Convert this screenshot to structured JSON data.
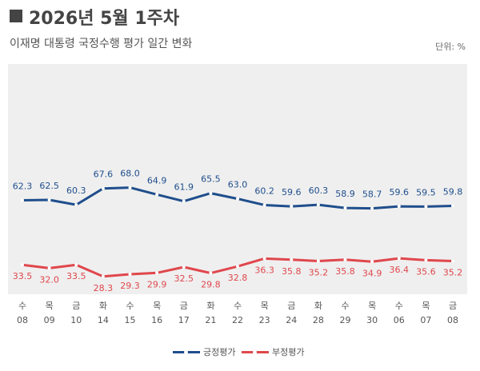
{
  "header": {
    "title": "2026년 5월 1주차",
    "subtitle": "이재명 대통령 국정수행 평가 일간 변화",
    "unit": "단위: %"
  },
  "colors": {
    "approve": "#1f4e8c",
    "disapprove": "#e0474c",
    "plot_bg": "#efefef"
  },
  "chart_data": {
    "type": "line",
    "title": "",
    "xlabel": "",
    "ylabel": "",
    "ylim": [
      20,
      75
    ],
    "grid": false,
    "legend_position": "bottom",
    "x": [
      {
        "day": "수",
        "date": "08"
      },
      {
        "day": "목",
        "date": "09"
      },
      {
        "day": "금",
        "date": "10"
      },
      {
        "day": "화",
        "date": "14"
      },
      {
        "day": "수",
        "date": "15"
      },
      {
        "day": "목",
        "date": "16"
      },
      {
        "day": "금",
        "date": "17"
      },
      {
        "day": "화",
        "date": "21"
      },
      {
        "day": "수",
        "date": "22"
      },
      {
        "day": "목",
        "date": "23"
      },
      {
        "day": "금",
        "date": "24"
      },
      {
        "day": "화",
        "date": "28"
      },
      {
        "day": "수",
        "date": "29"
      },
      {
        "day": "목",
        "date": "30"
      },
      {
        "day": "수",
        "date": "06"
      },
      {
        "day": "목",
        "date": "07"
      },
      {
        "day": "금",
        "date": "08"
      }
    ],
    "series": [
      {
        "name": "긍정평가",
        "color": "#1f4e8c",
        "values": [
          62.3,
          62.5,
          60.3,
          67.6,
          68.0,
          64.9,
          61.9,
          65.5,
          63.0,
          60.2,
          59.6,
          60.3,
          58.9,
          58.7,
          59.6,
          59.5,
          59.8
        ]
      },
      {
        "name": "부정평가",
        "color": "#e0474c",
        "values": [
          33.5,
          32.0,
          33.5,
          28.3,
          29.3,
          29.9,
          32.5,
          29.8,
          32.8,
          36.3,
          35.8,
          35.2,
          35.8,
          34.9,
          36.4,
          35.6,
          35.2
        ]
      }
    ]
  }
}
